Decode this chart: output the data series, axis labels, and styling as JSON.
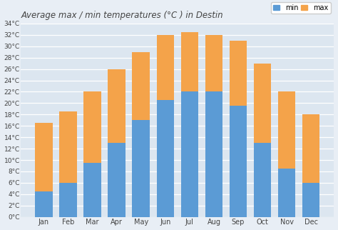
{
  "title": "Average max / min temperatures (°C ) in Destin",
  "months": [
    "Jan",
    "Feb",
    "Mar",
    "Apr",
    "May",
    "Jun",
    "Jul",
    "Aug",
    "Sep",
    "Oct",
    "Nov",
    "Dec"
  ],
  "min_temps": [
    4.5,
    6,
    9.5,
    13,
    17,
    20.5,
    22,
    22,
    19.5,
    13,
    8.5,
    6
  ],
  "max_temps": [
    16.5,
    18.5,
    22,
    26,
    29,
    32,
    32.5,
    32,
    31,
    27,
    22,
    18
  ],
  "min_color": "#5b9bd5",
  "max_color": "#f4a34a",
  "bg_color": "#e8eef5",
  "plot_bg_color": "#dce6f0",
  "grid_color": "#ffffff",
  "ylim": [
    0,
    34
  ],
  "yticks": [
    0,
    2,
    4,
    6,
    8,
    10,
    12,
    14,
    16,
    18,
    20,
    22,
    24,
    26,
    28,
    30,
    32,
    34
  ],
  "ylabel_suffix": "°C",
  "title_fontsize": 8.5,
  "legend_labels": [
    "min",
    "max"
  ]
}
